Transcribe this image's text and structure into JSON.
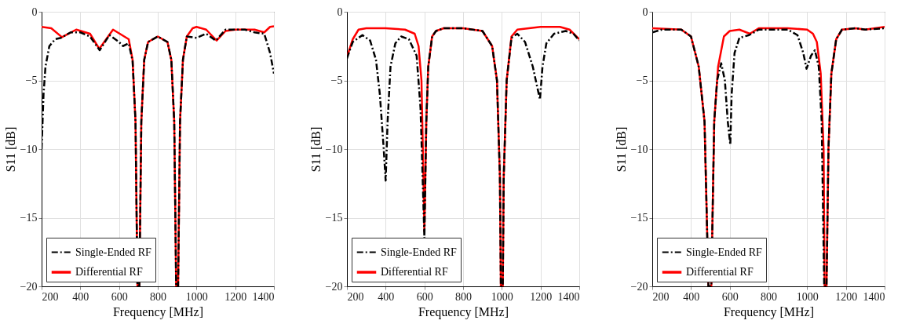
{
  "chart_data": [
    {
      "type": "line",
      "xlabel": "Frequency [MHz]",
      "ylabel": "S11 [dB]",
      "xlim": [
        200,
        1400
      ],
      "xticks": [
        200,
        400,
        600,
        800,
        1000,
        1200,
        1400
      ],
      "ylim": [
        -20,
        0
      ],
      "yticks": [
        -20,
        -15,
        -10,
        -5,
        0
      ],
      "grid": true,
      "legend": "bottom left",
      "series": [
        {
          "name": "Single-Ended RF",
          "color": "#000000",
          "line_style": "dashed",
          "x": [
            200,
            210,
            220,
            240,
            270,
            300,
            350,
            400,
            450,
            500,
            550,
            600,
            620,
            650,
            670,
            685,
            695,
            705,
            715,
            730,
            750,
            800,
            850,
            870,
            885,
            895,
            905,
            915,
            930,
            950,
            1000,
            1050,
            1100,
            1150,
            1250,
            1300,
            1350,
            1380,
            1400
          ],
          "values": [
            -10,
            -6,
            -4,
            -2.5,
            -2,
            -1.9,
            -1.5,
            -1.5,
            -1.8,
            -2.8,
            -1.7,
            -2.2,
            -2.5,
            -2.3,
            -3.6,
            -8,
            -20,
            -20,
            -8,
            -3.5,
            -2.2,
            -1.8,
            -2.2,
            -3.5,
            -8,
            -20,
            -20,
            -8,
            -3.5,
            -1.8,
            -1.9,
            -1.6,
            -2.1,
            -1.3,
            -1.3,
            -1.5,
            -1.6,
            -3,
            -4.5
          ]
        },
        {
          "name": "Differential RF",
          "color": "#ff0000",
          "line_style": "solid",
          "x": [
            200,
            250,
            305,
            379,
            450,
            498,
            569,
            650,
            670,
            685,
            695,
            705,
            715,
            730,
            750,
            800,
            850,
            870,
            885,
            895,
            905,
            915,
            930,
            950,
            980,
            1000,
            1050,
            1104,
            1150,
            1200,
            1300,
            1350,
            1380,
            1400
          ],
          "values": [
            -1.1,
            -1.2,
            -1.85,
            -1.3,
            -1.6,
            -2.7,
            -1.3,
            -2,
            -3.5,
            -8,
            -20,
            -20,
            -8,
            -3.5,
            -2.2,
            -1.8,
            -2.2,
            -3.5,
            -8,
            -20,
            -20,
            -8,
            -3.5,
            -1.8,
            -1.2,
            -1.1,
            -1.3,
            -2.1,
            -1.4,
            -1.3,
            -1.3,
            -1.5,
            -1.1,
            -1.05
          ]
        }
      ]
    },
    {
      "type": "line",
      "xlabel": "Frequency [MHz]",
      "ylabel": "S11 [dB]",
      "xlim": [
        200,
        1400
      ],
      "xticks": [
        200,
        400,
        600,
        800,
        1000,
        1200,
        1400
      ],
      "ylim": [
        -20,
        0
      ],
      "yticks": [
        -20,
        -15,
        -10,
        -5,
        0
      ],
      "grid": true,
      "legend": "bottom left",
      "series": [
        {
          "name": "Single-Ended RF",
          "color": "#000000",
          "line_style": "dashed",
          "x": [
            200,
            230,
            280,
            320,
            350,
            370,
            390,
            400,
            410,
            425,
            450,
            480,
            520,
            560,
            580,
            595,
            600,
            610,
            620,
            640,
            660,
            700,
            800,
            900,
            950,
            975,
            990,
            995,
            1005,
            1010,
            1025,
            1050,
            1080,
            1120,
            1160,
            1197,
            1210,
            1230,
            1270,
            1330,
            1370,
            1400
          ],
          "values": [
            -3.4,
            -2.2,
            -1.7,
            -2.1,
            -3.5,
            -6,
            -10,
            -12.3,
            -8,
            -4,
            -2.3,
            -1.8,
            -2,
            -3.2,
            -7,
            -14,
            -16.5,
            -8,
            -4,
            -1.8,
            -1.4,
            -1.2,
            -1.2,
            -1.4,
            -2.5,
            -5,
            -12,
            -20,
            -20,
            -12,
            -5,
            -1.9,
            -1.6,
            -2.2,
            -4,
            -6.4,
            -4,
            -2.3,
            -1.6,
            -1.4,
            -1.6,
            -2.1
          ]
        },
        {
          "name": "Differential RF",
          "color": "#ff0000",
          "line_style": "solid",
          "x": [
            200,
            230,
            260,
            300,
            400,
            500,
            550,
            570,
            585,
            595,
            600,
            610,
            620,
            640,
            660,
            700,
            800,
            900,
            950,
            975,
            990,
            995,
            1005,
            1010,
            1025,
            1050,
            1080,
            1200,
            1300,
            1350,
            1400
          ],
          "values": [
            -3.3,
            -2,
            -1.3,
            -1.2,
            -1.2,
            -1.3,
            -1.6,
            -2.5,
            -5,
            -12,
            -16,
            -8,
            -4,
            -1.8,
            -1.4,
            -1.2,
            -1.2,
            -1.4,
            -2.5,
            -5,
            -12,
            -20,
            -20,
            -12,
            -5,
            -1.8,
            -1.3,
            -1.1,
            -1.1,
            -1.3,
            -2
          ]
        }
      ]
    },
    {
      "type": "line",
      "xlabel": "Frequency [MHz]",
      "ylabel": "S11 [dB]",
      "xlim": [
        200,
        1400
      ],
      "xticks": [
        200,
        400,
        600,
        800,
        1000,
        1200,
        1400
      ],
      "ylim": [
        -20,
        0
      ],
      "yticks": [
        -20,
        -15,
        -10,
        -5,
        0
      ],
      "grid": true,
      "legend": "bottom left",
      "series": [
        {
          "name": "Single-Ended RF",
          "color": "#000000",
          "line_style": "dashed",
          "x": [
            200,
            250,
            350,
            400,
            440,
            470,
            490,
            505,
            520,
            535,
            556,
            575,
            590,
            603,
            610,
            625,
            650,
            700,
            750,
            900,
            950,
            980,
            997,
            1020,
            1040,
            1060,
            1075,
            1088,
            1100,
            1110,
            1125,
            1150,
            1180,
            1250,
            1300,
            1400
          ],
          "values": [
            -1.5,
            -1.3,
            -1.3,
            -1.8,
            -4,
            -8,
            -20,
            -20,
            -8,
            -5,
            -3.75,
            -5,
            -8,
            -9.7,
            -6,
            -3,
            -1.9,
            -1.7,
            -1.3,
            -1.3,
            -1.7,
            -3,
            -4.15,
            -3.2,
            -2.8,
            -4,
            -8,
            -20,
            -20,
            -10,
            -4.5,
            -2,
            -1.3,
            -1.2,
            -1.3,
            -1.2
          ]
        },
        {
          "name": "Differential RF",
          "color": "#ff0000",
          "line_style": "solid",
          "x": [
            200,
            350,
            400,
            440,
            470,
            490,
            505,
            520,
            540,
            570,
            600,
            650,
            704,
            750,
            900,
            1000,
            1030,
            1050,
            1070,
            1085,
            1090,
            1100,
            1110,
            1125,
            1150,
            1180,
            1250,
            1300,
            1350,
            1400
          ],
          "values": [
            -1.2,
            -1.3,
            -1.8,
            -4,
            -8,
            -20,
            -20,
            -8,
            -4,
            -1.8,
            -1.4,
            -1.3,
            -1.6,
            -1.2,
            -1.2,
            -1.3,
            -1.6,
            -2.2,
            -4.5,
            -10,
            -20,
            -20,
            -10,
            -4.5,
            -2,
            -1.3,
            -1.2,
            -1.3,
            -1.2,
            -1.1
          ]
        }
      ]
    }
  ]
}
